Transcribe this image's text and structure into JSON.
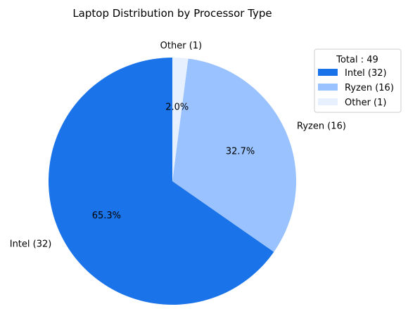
{
  "chart_data": {
    "type": "pie",
    "title": "Laptop Distribution by Processor Type",
    "slices": [
      {
        "label": "Intel (32)",
        "value": 32,
        "percent_label": "65.3%",
        "color": "#1a73e8"
      },
      {
        "label": "Ryzen (16)",
        "value": 16,
        "percent_label": "32.7%",
        "color": "#99c2ff"
      },
      {
        "label": "Other (1)",
        "value": 1,
        "percent_label": "2.0%",
        "color": "#e6f0ff"
      }
    ],
    "legend": {
      "title": "Total : 49",
      "placement": "top-right",
      "entries": [
        "Intel (32)",
        "Ryzen (16)",
        "Other (1)"
      ]
    }
  }
}
